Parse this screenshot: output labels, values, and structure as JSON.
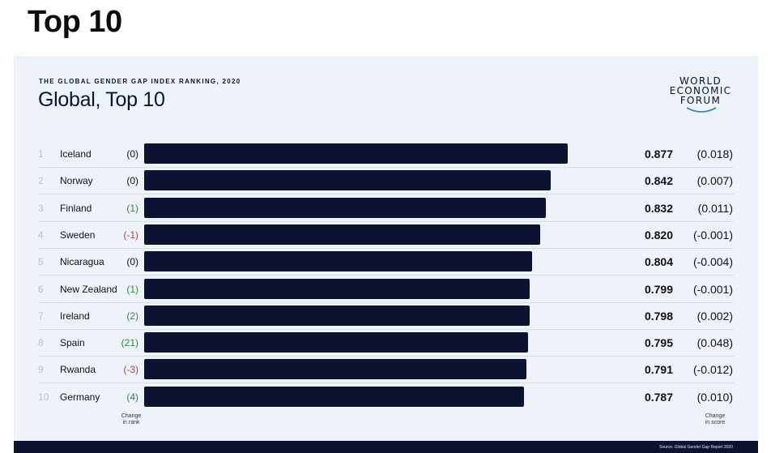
{
  "page_heading": "Top 10",
  "card": {
    "eyebrow": "THE GLOBAL GENDER GAP INDEX RANKING, 2020",
    "title": "Global, Top 10",
    "logo_lines": [
      "WORLD",
      "ECONOMIC",
      "FORUM"
    ],
    "footnote_rank": [
      "Change",
      "in rank"
    ],
    "footnote_score": [
      "Change",
      "in score"
    ],
    "source": "Source: Global Gender Gap Report 2020"
  },
  "colors": {
    "bar": "#0b1331",
    "rank_up": "#2e8b3a",
    "rank_down": "#d0352f",
    "background": "#eef3fa"
  },
  "chart_data": {
    "type": "bar",
    "orientation": "horizontal",
    "title": "Global, Top 10",
    "categories": [
      "Iceland",
      "Norway",
      "Finland",
      "Sweden",
      "Nicaragua",
      "New Zealand",
      "Ireland",
      "Spain",
      "Rwanda",
      "Germany"
    ],
    "ranks": [
      "1",
      "2",
      "3",
      "4",
      "5",
      "6",
      "7",
      "8",
      "9",
      "10"
    ],
    "values": [
      0.877,
      0.842,
      0.832,
      0.82,
      0.804,
      0.799,
      0.798,
      0.795,
      0.791,
      0.787
    ],
    "score_labels": [
      "0.877",
      "0.842",
      "0.832",
      "0.820",
      "0.804",
      "0.799",
      "0.798",
      "0.795",
      "0.791",
      "0.787"
    ],
    "rank_change": [
      "(0)",
      "(0)",
      "(1)",
      "(-1)",
      "(0)",
      "(1)",
      "(2)",
      "(21)",
      "(-3)",
      "(4)"
    ],
    "score_change": [
      "(0.018)",
      "(0.007)",
      "(0.011)",
      "(-0.001)",
      "(-0.004)",
      "(-0.001)",
      "(0.002)",
      "(0.048)",
      "(-0.012)",
      "(0.010)"
    ],
    "xlim": [
      0,
      0.877
    ],
    "grid": false,
    "legend": "none"
  }
}
